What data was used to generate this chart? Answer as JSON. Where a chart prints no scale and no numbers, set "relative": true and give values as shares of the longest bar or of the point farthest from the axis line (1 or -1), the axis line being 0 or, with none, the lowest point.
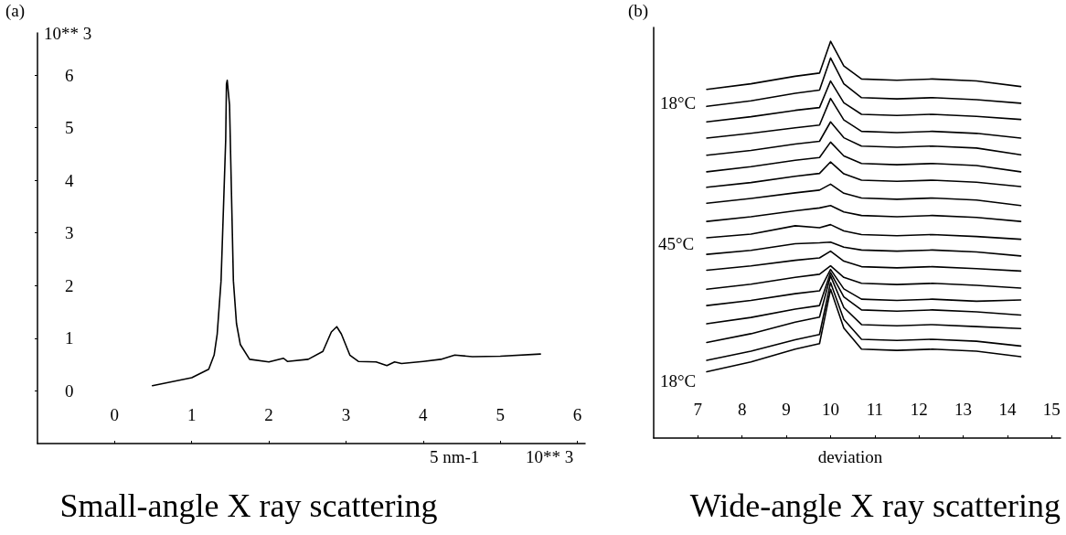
{
  "chart_data": [
    {
      "type": "line",
      "title": "Small-angle X ray scattering",
      "xlabel": "5 nm-1",
      "ylabel": "10** 3",
      "annotations": [
        "(a)",
        "10** 3"
      ],
      "x": [
        0.49,
        1.0,
        1.22,
        1.29,
        1.33,
        1.38,
        1.41,
        1.44,
        1.45,
        1.46,
        1.49,
        1.51,
        1.54,
        1.58,
        1.63,
        1.75,
        2.0,
        2.19,
        2.24,
        2.51,
        2.7,
        2.81,
        2.88,
        2.94,
        3.05,
        3.16,
        3.39,
        3.53,
        3.63,
        3.72,
        4.0,
        4.23,
        4.41,
        4.64,
        5.0,
        5.52
      ],
      "values": [
        0.1,
        0.25,
        0.41,
        0.68,
        1.08,
        2.09,
        3.42,
        4.76,
        5.83,
        5.9,
        5.43,
        4.09,
        2.09,
        1.28,
        0.88,
        0.6,
        0.55,
        0.62,
        0.56,
        0.6,
        0.75,
        1.12,
        1.22,
        1.08,
        0.68,
        0.56,
        0.55,
        0.48,
        0.55,
        0.52,
        0.56,
        0.6,
        0.68,
        0.65,
        0.66,
        0.7
      ],
      "color": "#000000",
      "xlim": [
        -1,
        6.1
      ],
      "xticks": [
        0,
        1,
        2,
        3,
        4,
        5,
        6
      ],
      "ylim": [
        -1,
        6.8
      ],
      "yticks": [
        0,
        1,
        2,
        3,
        4,
        5,
        6
      ],
      "marker": "none",
      "line_style": "solid"
    },
    {
      "type": "line",
      "title": "Wide-angle X ray scattering",
      "xlabel": "deviation",
      "relative": true,
      "tick_labels": "x",
      "marker": "none",
      "line_style": "solid",
      "annotations": [
        "(b)",
        "18°C",
        "45°C",
        "18°C"
      ],
      "xlim": [
        6,
        15.2
      ],
      "xticks": [
        7,
        8,
        9,
        10,
        11,
        12,
        13,
        14,
        15
      ],
      "x": [
        7.2,
        8.2,
        9.2,
        9.75,
        10.0,
        10.3,
        10.7,
        11.5,
        12.3,
        13.3,
        14.3
      ],
      "series": [
        {
          "color": "#000000",
          "values": [
            0.879,
            0.893,
            0.912,
            0.92,
            1.0,
            0.938,
            0.905,
            0.902,
            0.905,
            0.9,
            0.886
          ]
        },
        {
          "color": "#000000",
          "values": [
            0.836,
            0.85,
            0.869,
            0.877,
            0.958,
            0.893,
            0.858,
            0.855,
            0.858,
            0.853,
            0.844
          ]
        },
        {
          "color": "#000000",
          "values": [
            0.797,
            0.81,
            0.826,
            0.833,
            0.9,
            0.845,
            0.816,
            0.813,
            0.816,
            0.811,
            0.803
          ]
        },
        {
          "color": "#000000",
          "values": [
            0.756,
            0.768,
            0.782,
            0.789,
            0.856,
            0.802,
            0.773,
            0.77,
            0.773,
            0.768,
            0.756
          ]
        },
        {
          "color": "#000000",
          "values": [
            0.713,
            0.725,
            0.741,
            0.748,
            0.797,
            0.757,
            0.736,
            0.733,
            0.736,
            0.731,
            0.714
          ]
        },
        {
          "color": "#000000",
          "values": [
            0.671,
            0.684,
            0.7,
            0.707,
            0.746,
            0.711,
            0.692,
            0.689,
            0.692,
            0.687,
            0.671
          ]
        },
        {
          "color": "#000000",
          "values": [
            0.632,
            0.644,
            0.66,
            0.667,
            0.696,
            0.666,
            0.65,
            0.647,
            0.65,
            0.645,
            0.634
          ]
        },
        {
          "color": "#000000",
          "values": [
            0.592,
            0.604,
            0.618,
            0.625,
            0.64,
            0.617,
            0.605,
            0.602,
            0.605,
            0.6,
            0.586
          ]
        },
        {
          "color": "#000000",
          "values": [
            0.546,
            0.558,
            0.573,
            0.58,
            0.586,
            0.57,
            0.561,
            0.558,
            0.561,
            0.556,
            0.546
          ]
        },
        {
          "color": "#000000",
          "values": [
            0.505,
            0.514,
            0.535,
            0.53,
            0.538,
            0.522,
            0.513,
            0.51,
            0.513,
            0.508,
            0.501
          ]
        },
        {
          "color": "#000000",
          "values": [
            0.463,
            0.473,
            0.49,
            0.492,
            0.494,
            0.481,
            0.474,
            0.471,
            0.474,
            0.469,
            0.459
          ]
        },
        {
          "color": "#000000",
          "values": [
            0.423,
            0.434,
            0.448,
            0.454,
            0.471,
            0.446,
            0.432,
            0.429,
            0.432,
            0.427,
            0.421
          ]
        },
        {
          "color": "#000000",
          "values": [
            0.375,
            0.388,
            0.405,
            0.413,
            0.434,
            0.405,
            0.39,
            0.387,
            0.39,
            0.385,
            0.378
          ]
        },
        {
          "color": "#000000",
          "values": [
            0.334,
            0.347,
            0.364,
            0.371,
            0.425,
            0.376,
            0.35,
            0.347,
            0.35,
            0.345,
            0.348
          ]
        },
        {
          "color": "#000000",
          "values": [
            0.288,
            0.304,
            0.325,
            0.334,
            0.417,
            0.356,
            0.323,
            0.32,
            0.323,
            0.318,
            0.31
          ]
        },
        {
          "color": "#000000",
          "values": [
            0.241,
            0.263,
            0.292,
            0.305,
            0.409,
            0.329,
            0.286,
            0.283,
            0.286,
            0.281,
            0.276
          ]
        },
        {
          "color": "#000000",
          "values": [
            0.196,
            0.219,
            0.248,
            0.261,
            0.392,
            0.299,
            0.249,
            0.246,
            0.249,
            0.244,
            0.232
          ]
        },
        {
          "color": "#000000",
          "values": [
            0.167,
            0.192,
            0.224,
            0.238,
            0.375,
            0.277,
            0.224,
            0.221,
            0.224,
            0.219,
            0.205
          ]
        }
      ]
    }
  ]
}
